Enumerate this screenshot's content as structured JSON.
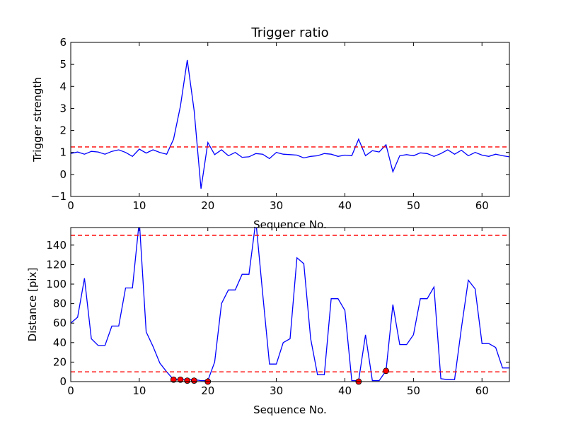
{
  "chart_data": [
    {
      "type": "line",
      "title": "Trigger ratio",
      "xlabel": "Sequence No.",
      "ylabel": "Trigger strength",
      "xlim": [
        0,
        64
      ],
      "ylim": [
        -1,
        6
      ],
      "xticks": [
        0,
        10,
        20,
        30,
        40,
        50,
        60
      ],
      "yticks": [
        -1,
        0,
        1,
        2,
        3,
        4,
        5,
        6
      ],
      "ytick_labels": [
        "−1",
        "0",
        "1",
        "2",
        "3",
        "4",
        "5",
        "6"
      ],
      "threshold": 1.25,
      "line_color": "#0000ff",
      "threshold_color": "#ff0000",
      "series": [
        {
          "x": [
            0,
            1,
            2,
            3,
            4,
            5,
            6,
            7,
            8,
            9,
            10,
            11,
            12,
            13,
            14,
            15,
            16,
            17,
            18,
            19,
            20,
            21,
            22,
            23,
            24,
            25,
            26,
            27,
            28,
            29,
            30,
            31,
            32,
            33,
            34,
            35,
            36,
            37,
            38,
            39,
            40,
            41,
            42,
            43,
            44,
            45,
            46,
            47,
            48,
            49,
            50,
            51,
            52,
            53,
            54,
            55,
            56,
            57,
            58,
            59,
            60,
            61,
            62,
            63,
            64
          ],
          "values": [
            0.95,
            1.02,
            0.92,
            1.05,
            1.02,
            0.92,
            1.05,
            1.12,
            1.0,
            0.82,
            1.15,
            0.97,
            1.12,
            1.0,
            0.92,
            1.6,
            3.1,
            5.2,
            2.9,
            -0.65,
            1.45,
            0.9,
            1.12,
            0.85,
            1.0,
            0.78,
            0.8,
            0.95,
            0.92,
            0.72,
            1.0,
            0.92,
            0.9,
            0.88,
            0.75,
            0.82,
            0.85,
            0.95,
            0.92,
            0.82,
            0.88,
            0.85,
            1.6,
            0.85,
            1.08,
            1.02,
            1.35,
            0.12,
            0.85,
            0.9,
            0.85,
            0.98,
            0.95,
            0.82,
            0.95,
            1.12,
            0.92,
            1.1,
            0.85,
            1.0,
            0.88,
            0.82,
            0.92,
            0.85,
            0.8
          ]
        }
      ]
    },
    {
      "type": "line",
      "title": "",
      "xlabel": "Sequence No.",
      "ylabel": "Distance [pix]",
      "xlim": [
        0,
        64
      ],
      "ylim": [
        0,
        158
      ],
      "xticks": [
        0,
        10,
        20,
        30,
        40,
        50,
        60
      ],
      "yticks": [
        0,
        20,
        40,
        60,
        80,
        100,
        120,
        140
      ],
      "thresholds": [
        150,
        10
      ],
      "line_color": "#0000ff",
      "threshold_color": "#ff0000",
      "marker_color": "#ff0000",
      "series": [
        {
          "x": [
            0,
            1,
            2,
            3,
            4,
            5,
            6,
            7,
            8,
            9,
            10,
            11,
            12,
            13,
            14,
            15,
            16,
            17,
            18,
            19,
            20,
            21,
            22,
            23,
            24,
            25,
            26,
            27,
            28,
            29,
            30,
            31,
            32,
            33,
            34,
            35,
            36,
            37,
            38,
            39,
            40,
            41,
            42,
            43,
            44,
            45,
            46,
            47,
            48,
            49,
            50,
            51,
            52,
            53,
            54,
            55,
            56,
            57,
            58,
            59,
            60,
            61,
            62,
            63,
            64
          ],
          "values": [
            60,
            66,
            106,
            44,
            37,
            37,
            57,
            57,
            96,
            96,
            165,
            51,
            36,
            19,
            10,
            2,
            2,
            2,
            2,
            1,
            1,
            20,
            80,
            94,
            94,
            110,
            110,
            165,
            90,
            18,
            18,
            40,
            44,
            127,
            121,
            44,
            7,
            7,
            85,
            85,
            73,
            1,
            1,
            48,
            1,
            1,
            11,
            79,
            38,
            38,
            48,
            85,
            85,
            97,
            3,
            2,
            2,
            55,
            104,
            95,
            39,
            39,
            35,
            14,
            14
          ]
        }
      ],
      "markers": {
        "x": [
          15,
          16,
          17,
          18,
          20,
          42,
          46
        ],
        "values": [
          2,
          2,
          1,
          1,
          0,
          0,
          11
        ]
      }
    }
  ]
}
